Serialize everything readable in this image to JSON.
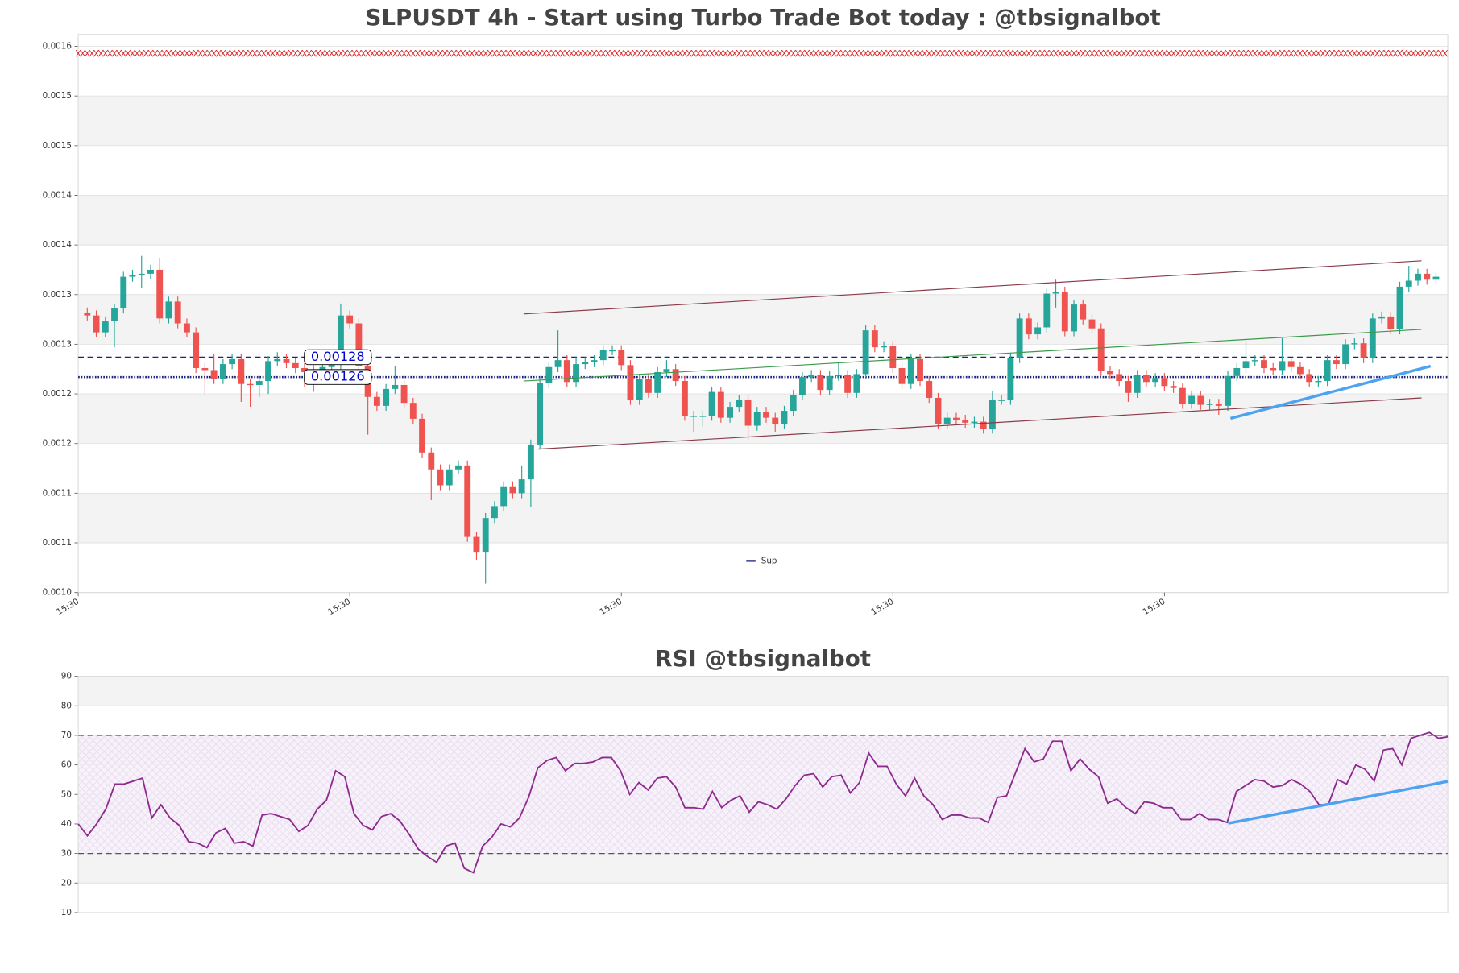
{
  "chart_data": [
    {
      "type": "candlestick",
      "title": "SLPUSDT 4h - Start using Turbo Trade Bot today : @tbsignalbot",
      "xlim": [
        -1,
        150.3
      ],
      "xticks": [
        {
          "value": -1,
          "label": "15:30"
        },
        {
          "value": 29,
          "label": "15:30"
        },
        {
          "value": 59,
          "label": "15:30"
        },
        {
          "value": 89,
          "label": "15:30"
        },
        {
          "value": 119,
          "label": "15:30"
        }
      ],
      "ylim": [
        0.001043,
        0.001605
      ],
      "yticks": [
        {
          "value": 0.001043,
          "label": "0.0010"
        },
        {
          "value": 0.001093,
          "label": "0.0011"
        },
        {
          "value": 0.001143,
          "label": "0.0011"
        },
        {
          "value": 0.001193,
          "label": "0.0012"
        },
        {
          "value": 0.001243,
          "label": "0.0012"
        },
        {
          "value": 0.001293,
          "label": "0.0013"
        },
        {
          "value": 0.001343,
          "label": "0.0013"
        },
        {
          "value": 0.001393,
          "label": "0.0014"
        },
        {
          "value": 0.001443,
          "label": "0.0014"
        },
        {
          "value": 0.001493,
          "label": "0.0015"
        },
        {
          "value": 0.001543,
          "label": "0.0015"
        },
        {
          "value": 0.001593,
          "label": "0.0016"
        }
      ],
      "grid_bands": true,
      "up_color": "#26a69a",
      "down_color": "#ef5350",
      "open": [
        0.001325,
        0.001322,
        0.001305,
        0.001316,
        0.001329,
        0.001361,
        0.001363,
        0.001364,
        0.001368,
        0.001319,
        0.001336,
        0.001314,
        0.001305,
        0.001269,
        0.001267,
        0.001258,
        0.001273,
        0.001278,
        0.001253,
        0.001252,
        0.001256,
        0.001276,
        0.001278,
        0.001274,
        0.001269,
        0.001265,
        0.001267,
        0.00127,
        0.001273,
        0.001322,
        0.001314,
        0.001271,
        0.00124,
        0.001231,
        0.001248,
        0.001252,
        0.001234,
        0.001218,
        0.001184,
        0.001167,
        0.001151,
        0.001167,
        0.001171,
        0.001099,
        0.001084,
        0.001118,
        0.00113,
        0.00115,
        0.001143,
        0.001157,
        0.001192,
        0.001254,
        0.00127,
        0.001277,
        0.001255,
        0.001273,
        0.001275,
        0.001277,
        0.001287,
        0.001287,
        0.001272,
        0.001237,
        0.001258,
        0.001244,
        0.001265,
        0.001268,
        0.001256,
        0.001221,
        0.001221,
        0.001221,
        0.001245,
        0.001219,
        0.00123,
        0.001237,
        0.001211,
        0.001225,
        0.001219,
        0.001213,
        0.001226,
        0.001242,
        0.00126,
        0.001262,
        0.001247,
        0.001261,
        0.001262,
        0.001244,
        0.001263,
        0.001307,
        0.00129,
        0.001291,
        0.001269,
        0.001253,
        0.001278,
        0.001256,
        0.001239,
        0.001213,
        0.001219,
        0.001217,
        0.001214,
        0.001215,
        0.001208,
        0.001237,
        0.001237,
        0.001279,
        0.001319,
        0.001303,
        0.00131,
        0.001344,
        0.001346,
        0.001306,
        0.001333,
        0.001318,
        0.001309,
        0.001266,
        0.001263,
        0.001256,
        0.001244,
        0.001262,
        0.001255,
        0.001259,
        0.001251,
        0.001249,
        0.001233,
        0.001241,
        0.001232,
        0.001233,
        0.001231,
        0.001261,
        0.001269,
        0.001276,
        0.001277,
        0.001269,
        0.001267,
        0.001276,
        0.00127,
        0.001263,
        0.001255,
        0.001256,
        0.001277,
        0.001273,
        0.001293,
        0.001294,
        0.001279,
        0.001319,
        0.001321,
        0.001308,
        0.001351,
        0.001357,
        0.001364,
        0.001358
      ],
      "high": [
        0.00133,
        0.001327,
        0.001321,
        0.001334,
        0.001366,
        0.001368,
        0.001382,
        0.001373,
        0.00138,
        0.001341,
        0.001341,
        0.001319,
        0.00131,
        0.001274,
        0.001283,
        0.001278,
        0.001283,
        0.001283,
        0.001258,
        0.001261,
        0.001281,
        0.001285,
        0.001283,
        0.001279,
        0.001274,
        0.001272,
        0.001275,
        0.001278,
        0.001334,
        0.001327,
        0.001319,
        0.001276,
        0.001245,
        0.001253,
        0.001271,
        0.001257,
        0.001239,
        0.001223,
        0.001189,
        0.001172,
        0.001172,
        0.001176,
        0.001176,
        0.001104,
        0.001123,
        0.001135,
        0.001155,
        0.001155,
        0.001171,
        0.001197,
        0.001259,
        0.001275,
        0.001307,
        0.001282,
        0.00128,
        0.00128,
        0.001282,
        0.001292,
        0.001292,
        0.001292,
        0.001277,
        0.001263,
        0.001263,
        0.00127,
        0.001277,
        0.001273,
        0.001261,
        0.001226,
        0.001226,
        0.00125,
        0.00125,
        0.001235,
        0.001242,
        0.001242,
        0.00123,
        0.00123,
        0.001224,
        0.001231,
        0.001247,
        0.001265,
        0.001267,
        0.001267,
        0.001266,
        0.001275,
        0.001267,
        0.001268,
        0.001312,
        0.001312,
        0.001296,
        0.001296,
        0.001274,
        0.001283,
        0.001283,
        0.001261,
        0.001244,
        0.001224,
        0.001224,
        0.001222,
        0.00122,
        0.00122,
        0.001246,
        0.001242,
        0.001284,
        0.001324,
        0.001324,
        0.001315,
        0.001349,
        0.001358,
        0.001351,
        0.001338,
        0.001338,
        0.001323,
        0.001314,
        0.001271,
        0.001268,
        0.001261,
        0.001267,
        0.001267,
        0.001264,
        0.001264,
        0.001256,
        0.001254,
        0.001246,
        0.001246,
        0.001238,
        0.001238,
        0.001266,
        0.001274,
        0.001296,
        0.001282,
        0.001282,
        0.001274,
        0.001299,
        0.001281,
        0.001275,
        0.001268,
        0.001261,
        0.001282,
        0.001282,
        0.001298,
        0.001299,
        0.001299,
        0.001324,
        0.001326,
        0.001326,
        0.001356,
        0.001372,
        0.001369,
        0.001369,
        0.001366
      ],
      "low": [
        0.001317,
        0.0013,
        0.0013,
        0.00129,
        0.001324,
        0.001356,
        0.00135,
        0.001359,
        0.001314,
        0.001314,
        0.001309,
        0.0013,
        0.001264,
        0.001243,
        0.001253,
        0.001253,
        0.001268,
        0.001235,
        0.00123,
        0.00124,
        0.001243,
        0.001271,
        0.001269,
        0.001264,
        0.00125,
        0.001245,
        0.001262,
        0.001265,
        0.001268,
        0.001309,
        0.001266,
        0.001202,
        0.001226,
        0.001226,
        0.001243,
        0.001229,
        0.001213,
        0.001179,
        0.001136,
        0.001146,
        0.001146,
        0.001162,
        0.001094,
        0.001076,
        0.001052,
        0.001113,
        0.001125,
        0.001138,
        0.001138,
        0.001129,
        0.001187,
        0.001249,
        0.001265,
        0.00125,
        0.00125,
        0.001268,
        0.00127,
        0.001272,
        0.001282,
        0.001267,
        0.001232,
        0.001232,
        0.001239,
        0.001239,
        0.00126,
        0.001251,
        0.001216,
        0.001205,
        0.00121,
        0.001216,
        0.001214,
        0.001214,
        0.001225,
        0.001197,
        0.001206,
        0.001214,
        0.001205,
        0.001208,
        0.001221,
        0.001237,
        0.001255,
        0.001242,
        0.001242,
        0.001256,
        0.001239,
        0.001239,
        0.001258,
        0.001285,
        0.001285,
        0.001264,
        0.001248,
        0.001248,
        0.001251,
        0.001234,
        0.001208,
        0.001208,
        0.001212,
        0.001209,
        0.001209,
        0.001203,
        0.001203,
        0.001232,
        0.001232,
        0.001274,
        0.001298,
        0.001298,
        0.001305,
        0.00133,
        0.001301,
        0.001301,
        0.001313,
        0.001304,
        0.001261,
        0.001258,
        0.001251,
        0.001235,
        0.001239,
        0.00125,
        0.00125,
        0.001246,
        0.001244,
        0.001228,
        0.001228,
        0.001227,
        0.001227,
        0.001222,
        0.001226,
        0.001256,
        0.001264,
        0.001271,
        0.001264,
        0.001262,
        0.001262,
        0.001265,
        0.001258,
        0.00125,
        0.00125,
        0.001251,
        0.001268,
        0.001268,
        0.001288,
        0.001274,
        0.001274,
        0.001314,
        0.001303,
        0.001303,
        0.001346,
        0.001352,
        0.001353,
        0.001353
      ],
      "close": [
        0.001322,
        0.001305,
        0.001316,
        0.001329,
        0.001361,
        0.001363,
        0.001364,
        0.001368,
        0.001319,
        0.001336,
        0.001314,
        0.001305,
        0.001269,
        0.001267,
        0.001258,
        0.001273,
        0.001278,
        0.001253,
        0.001252,
        0.001256,
        0.001276,
        0.001278,
        0.001274,
        0.001269,
        0.001265,
        0.001267,
        0.00127,
        0.001273,
        0.001322,
        0.001314,
        0.001271,
        0.00124,
        0.001231,
        0.001248,
        0.001252,
        0.001234,
        0.001218,
        0.001184,
        0.001167,
        0.001151,
        0.001167,
        0.001171,
        0.001099,
        0.001084,
        0.001118,
        0.00113,
        0.00115,
        0.001143,
        0.001157,
        0.001192,
        0.001254,
        0.00127,
        0.001277,
        0.001255,
        0.001273,
        0.001275,
        0.001277,
        0.001287,
        0.001287,
        0.001272,
        0.001237,
        0.001258,
        0.001244,
        0.001265,
        0.001268,
        0.001256,
        0.001221,
        0.001221,
        0.001221,
        0.001245,
        0.001219,
        0.00123,
        0.001237,
        0.001211,
        0.001225,
        0.001219,
        0.001213,
        0.001226,
        0.001242,
        0.00126,
        0.001262,
        0.001247,
        0.001261,
        0.001262,
        0.001244,
        0.001263,
        0.001307,
        0.00129,
        0.001291,
        0.001269,
        0.001253,
        0.001278,
        0.001256,
        0.001239,
        0.001213,
        0.001219,
        0.001217,
        0.001214,
        0.001215,
        0.001208,
        0.001237,
        0.001237,
        0.001279,
        0.001319,
        0.001303,
        0.00131,
        0.001344,
        0.001346,
        0.001306,
        0.001333,
        0.001318,
        0.001309,
        0.001266,
        0.001263,
        0.001256,
        0.001244,
        0.001262,
        0.001255,
        0.001259,
        0.001251,
        0.001249,
        0.001233,
        0.001241,
        0.001232,
        0.001233,
        0.001231,
        0.001261,
        0.001269,
        0.001276,
        0.001277,
        0.001269,
        0.001267,
        0.001276,
        0.00127,
        0.001263,
        0.001255,
        0.001256,
        0.001277,
        0.001273,
        0.001293,
        0.001294,
        0.001279,
        0.001319,
        0.001321,
        0.001308,
        0.001351,
        0.001357,
        0.001364,
        0.001358,
        0.001361
      ],
      "markers": {
        "value": 0.001586,
        "color": "#d62728"
      },
      "levels": [
        {
          "value": 0.00128,
          "color": "#1a237e",
          "style": "dashed",
          "show_value": true
        },
        {
          "name": "Sup",
          "value": 0.00126,
          "color": "#1a237e",
          "style": "dotted",
          "show_value": true
        }
      ],
      "trendlines": [
        {
          "x": [
            48.2,
            147.4
          ],
          "values": [
            0.0013235,
            0.001377
          ],
          "color": "#8b3a4a",
          "width": 1
        },
        {
          "x": [
            49.8,
            147.4
          ],
          "values": [
            0.0011874,
            0.001239
          ],
          "color": "#8b3a4a",
          "width": 1
        },
        {
          "x": [
            48.2,
            147.4
          ],
          "values": [
            0.001256,
            0.001308
          ],
          "color": "#3a9a4a",
          "width": 1
        },
        {
          "x": [
            126.3,
            148.4
          ],
          "values": [
            0.0012184,
            0.001271
          ],
          "color": "#4da3f0",
          "width": 3
        }
      ],
      "legend": "lower center"
    },
    {
      "type": "line",
      "title": "RSI @tbsignalbot",
      "xlim": [
        0,
        149
      ],
      "ylim": [
        10,
        90
      ],
      "yticks": [
        10,
        20,
        30,
        40,
        50,
        60,
        70,
        80,
        90
      ],
      "grid_bands": true,
      "series": [
        {
          "color": "#8e2a8e",
          "values": [
            40,
            36,
            40,
            45,
            53.5,
            53.5,
            54.5,
            55.5,
            42,
            46.5,
            42,
            39.5,
            34,
            33.5,
            32,
            37,
            38.5,
            33.5,
            34,
            32.5,
            43,
            43.5,
            42.5,
            41.5,
            37.5,
            39.5,
            45,
            48,
            58,
            56,
            43.5,
            39.5,
            38,
            42.5,
            43.5,
            41,
            36.5,
            31.5,
            29,
            27,
            32.5,
            33.5,
            25,
            23.5,
            32.5,
            35.5,
            40,
            39,
            42,
            49,
            59,
            61.5,
            62.5,
            58,
            60.5,
            60.5,
            61,
            62.5,
            62.5,
            58,
            50,
            54,
            51.5,
            55.5,
            56,
            52.5,
            45.5,
            45.5,
            45,
            51,
            45.5,
            48,
            49.5,
            44,
            47.5,
            46.5,
            45,
            48.5,
            53,
            56.5,
            57,
            52.5,
            56,
            56.5,
            50.5,
            54,
            64,
            59.5,
            59.5,
            53.5,
            49.5,
            55.5,
            49.5,
            46.5,
            41.5,
            43,
            43,
            42,
            42,
            40.5,
            49,
            49.5,
            57.5,
            65.5,
            61,
            62,
            68,
            68,
            58,
            62,
            58.5,
            56,
            47,
            48.5,
            45.5,
            43.5,
            47.5,
            47,
            45.5,
            45.5,
            41.5,
            41.5,
            43.5,
            41.5,
            41.5,
            40.5,
            51,
            53,
            55,
            54.5,
            52.5,
            53,
            55,
            53.5,
            51,
            46.5,
            46.5,
            55,
            53.5,
            60,
            58.5,
            54.5,
            65,
            65.5,
            60,
            69,
            70,
            71,
            69,
            69.5
          ]
        }
      ],
      "levels": [
        {
          "value": 70,
          "color": "#555555",
          "style": "dashed"
        },
        {
          "value": 30,
          "color": "#555555",
          "style": "dashed"
        }
      ],
      "fill_between_levels": true,
      "trendlines": [
        {
          "x": [
            125.1,
            149
          ],
          "values": [
            40.2,
            54.4
          ],
          "color": "#4da3f0",
          "width": 3
        }
      ]
    }
  ]
}
